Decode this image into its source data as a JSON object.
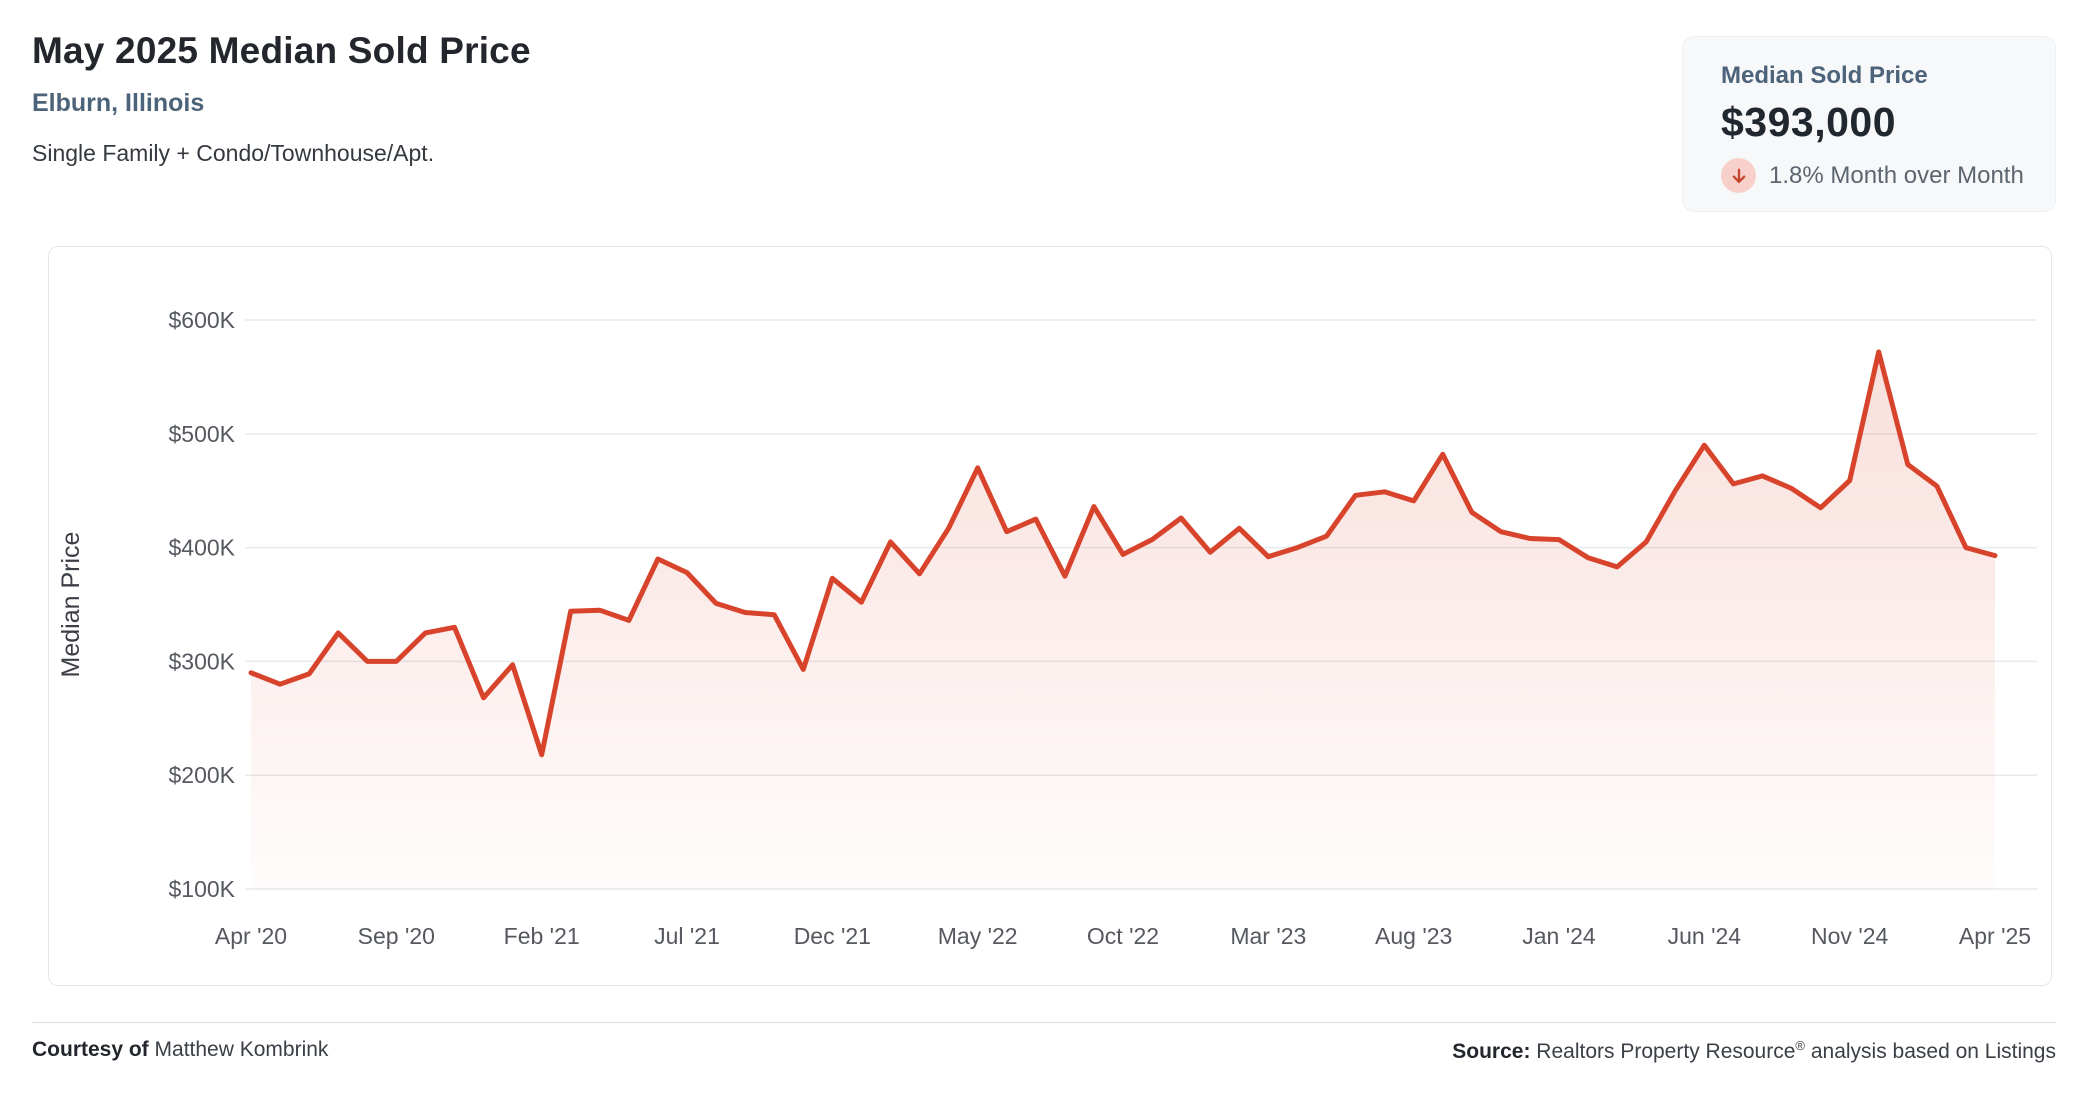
{
  "header": {
    "title": "May 2025 Median Sold Price",
    "location": "Elburn, Illinois",
    "property_types": "Single Family + Condo/Townhouse/Apt."
  },
  "stat_card": {
    "label": "Median Sold Price",
    "value": "$393,000",
    "change_text": "1.8% Month over Month",
    "change_direction": "down",
    "arrow_color": "#c64430",
    "arrow_bg_color": "#f7d1c9"
  },
  "footer": {
    "courtesy_label": "Courtesy of",
    "courtesy_name": "Matthew Kombrink",
    "source_label": "Source:",
    "source_before_reg": "Realtors Property Resource",
    "reg_symbol": "®",
    "source_after_reg": " analysis based on Listings"
  },
  "chart_data": {
    "type": "area",
    "title": "",
    "xlabel": "",
    "ylabel": "Median Price",
    "unit": "USD thousands",
    "grid": "horizontal",
    "legend": "none",
    "line_color": "#d8432c",
    "fill_style": "vertical gradient, light red fading to white, down to $100K baseline",
    "ylim": [
      100,
      600
    ],
    "y_tick_values": [
      600,
      500,
      400,
      300,
      200,
      100
    ],
    "y_tick_labels": [
      "$600K",
      "$500K",
      "$400K",
      "$300K",
      "$200K",
      "$100K"
    ],
    "x_tick_month_indices": [
      0,
      5,
      10,
      15,
      20,
      25,
      30,
      35,
      40,
      45,
      50,
      55,
      60
    ],
    "x_tick_labels": [
      "Apr '20",
      "Sep '20",
      "Feb '21",
      "Jul '21",
      "Dec '21",
      "May '22",
      "Oct '22",
      "Mar '23",
      "Aug '23",
      "Jan '24",
      "Jun '24",
      "Nov '24",
      "Apr '25"
    ],
    "months": [
      "Apr 2020",
      "May 2020",
      "Jun 2020",
      "Jul 2020",
      "Aug 2020",
      "Sep 2020",
      "Oct 2020",
      "Nov 2020",
      "Dec 2020",
      "Jan 2021",
      "Feb 2021",
      "Mar 2021",
      "Apr 2021",
      "May 2021",
      "Jun 2021",
      "Jul 2021",
      "Aug 2021",
      "Sep 2021",
      "Oct 2021",
      "Nov 2021",
      "Dec 2021",
      "Jan 2022",
      "Feb 2022",
      "Mar 2022",
      "Apr 2022",
      "May 2022",
      "Jun 2022",
      "Jul 2022",
      "Aug 2022",
      "Sep 2022",
      "Oct 2022",
      "Nov 2022",
      "Dec 2022",
      "Jan 2023",
      "Feb 2023",
      "Mar 2023",
      "Apr 2023",
      "May 2023",
      "Jun 2023",
      "Jul 2023",
      "Aug 2023",
      "Sep 2023",
      "Oct 2023",
      "Nov 2023",
      "Dec 2023",
      "Jan 2024",
      "Feb 2024",
      "Mar 2024",
      "Apr 2024",
      "May 2024",
      "Jun 2024",
      "Jul 2024",
      "Aug 2024",
      "Sep 2024",
      "Oct 2024",
      "Nov 2024",
      "Dec 2024",
      "Jan 2025",
      "Feb 2025",
      "Mar 2025",
      "Apr 2025"
    ],
    "values": [
      290,
      280,
      289,
      325,
      300,
      300,
      325,
      330,
      268,
      297,
      218,
      344,
      345,
      336,
      390,
      378,
      351,
      343,
      341,
      293,
      373,
      352,
      405,
      377,
      417,
      470,
      414,
      425,
      375,
      436,
      394,
      407,
      426,
      396,
      417,
      392,
      400,
      410,
      446,
      449,
      441,
      482,
      431,
      414,
      408,
      407,
      391,
      383,
      405,
      450,
      490,
      456,
      463,
      452,
      435,
      459,
      572,
      473,
      454,
      400,
      393
    ]
  }
}
